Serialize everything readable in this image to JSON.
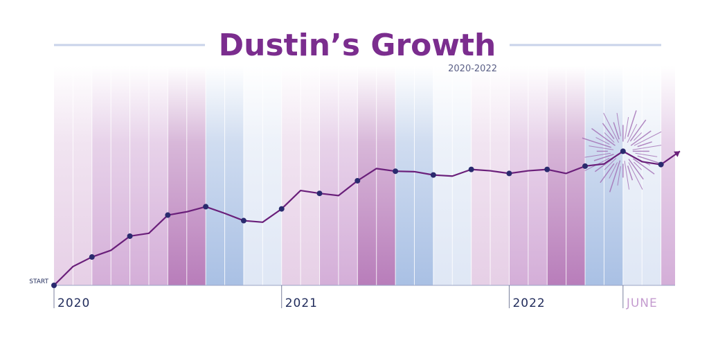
{
  "chart_data": {
    "type": "line",
    "title": "Dustin’s Growth",
    "subtitle": "2020-2022",
    "start_label": "START",
    "year_labels": [
      "2020",
      "2021",
      "2022",
      "JUNE"
    ],
    "year_label_month_index": [
      0,
      12,
      24,
      30
    ],
    "months_total": 32,
    "ylim": [
      0,
      100
    ],
    "series": [
      {
        "values": [
          0,
          8.5,
          12.8,
          15.8,
          22.2,
          23.5,
          31.7,
          33.2,
          35.5,
          32.5,
          29.2,
          28.5,
          34.5,
          42.8,
          41.5,
          40.5,
          47.2,
          52.7,
          51.5,
          51.3,
          49.8,
          49.3,
          52.3,
          51.7,
          50.5,
          51.7,
          52.3,
          50.5,
          53.8,
          54.8,
          60.5,
          55.8,
          54.5,
          60.5
        ],
        "markers": [
          0,
          2,
          4,
          6,
          8,
          10,
          12,
          14,
          16,
          18,
          20,
          22,
          24,
          26,
          28,
          30,
          32
        ]
      }
    ],
    "grid": true,
    "highlight_index": 30,
    "colors": {
      "title": "#7b2d8e",
      "subtitle": "#5a5f86",
      "line": "#6a1f7a",
      "marker": "#2a2a6e",
      "rule": "#c9d3ea",
      "axis_label": "#1f2a5a",
      "june_label": "#c49bcf",
      "burst": "#a06bb3",
      "band_purple": "#b87dba",
      "band_blue": "#a9c0e4",
      "band_pale_purple": "#e6cfe6",
      "band_pale_blue": "#dfe7f5",
      "band_mid_purple": "#d4aed8"
    },
    "band_colors": [
      "band_pale_purple",
      "band_mid_purple",
      "band_mid_purple",
      "band_purple",
      "band_blue",
      "band_pale_blue",
      "band_pale_purple",
      "band_mid_purple",
      "band_purple",
      "band_blue",
      "band_pale_blue",
      "band_pale_purple",
      "band_mid_purple",
      "band_purple",
      "band_blue",
      "band_pale_blue",
      "band_mid_purple"
    ]
  }
}
